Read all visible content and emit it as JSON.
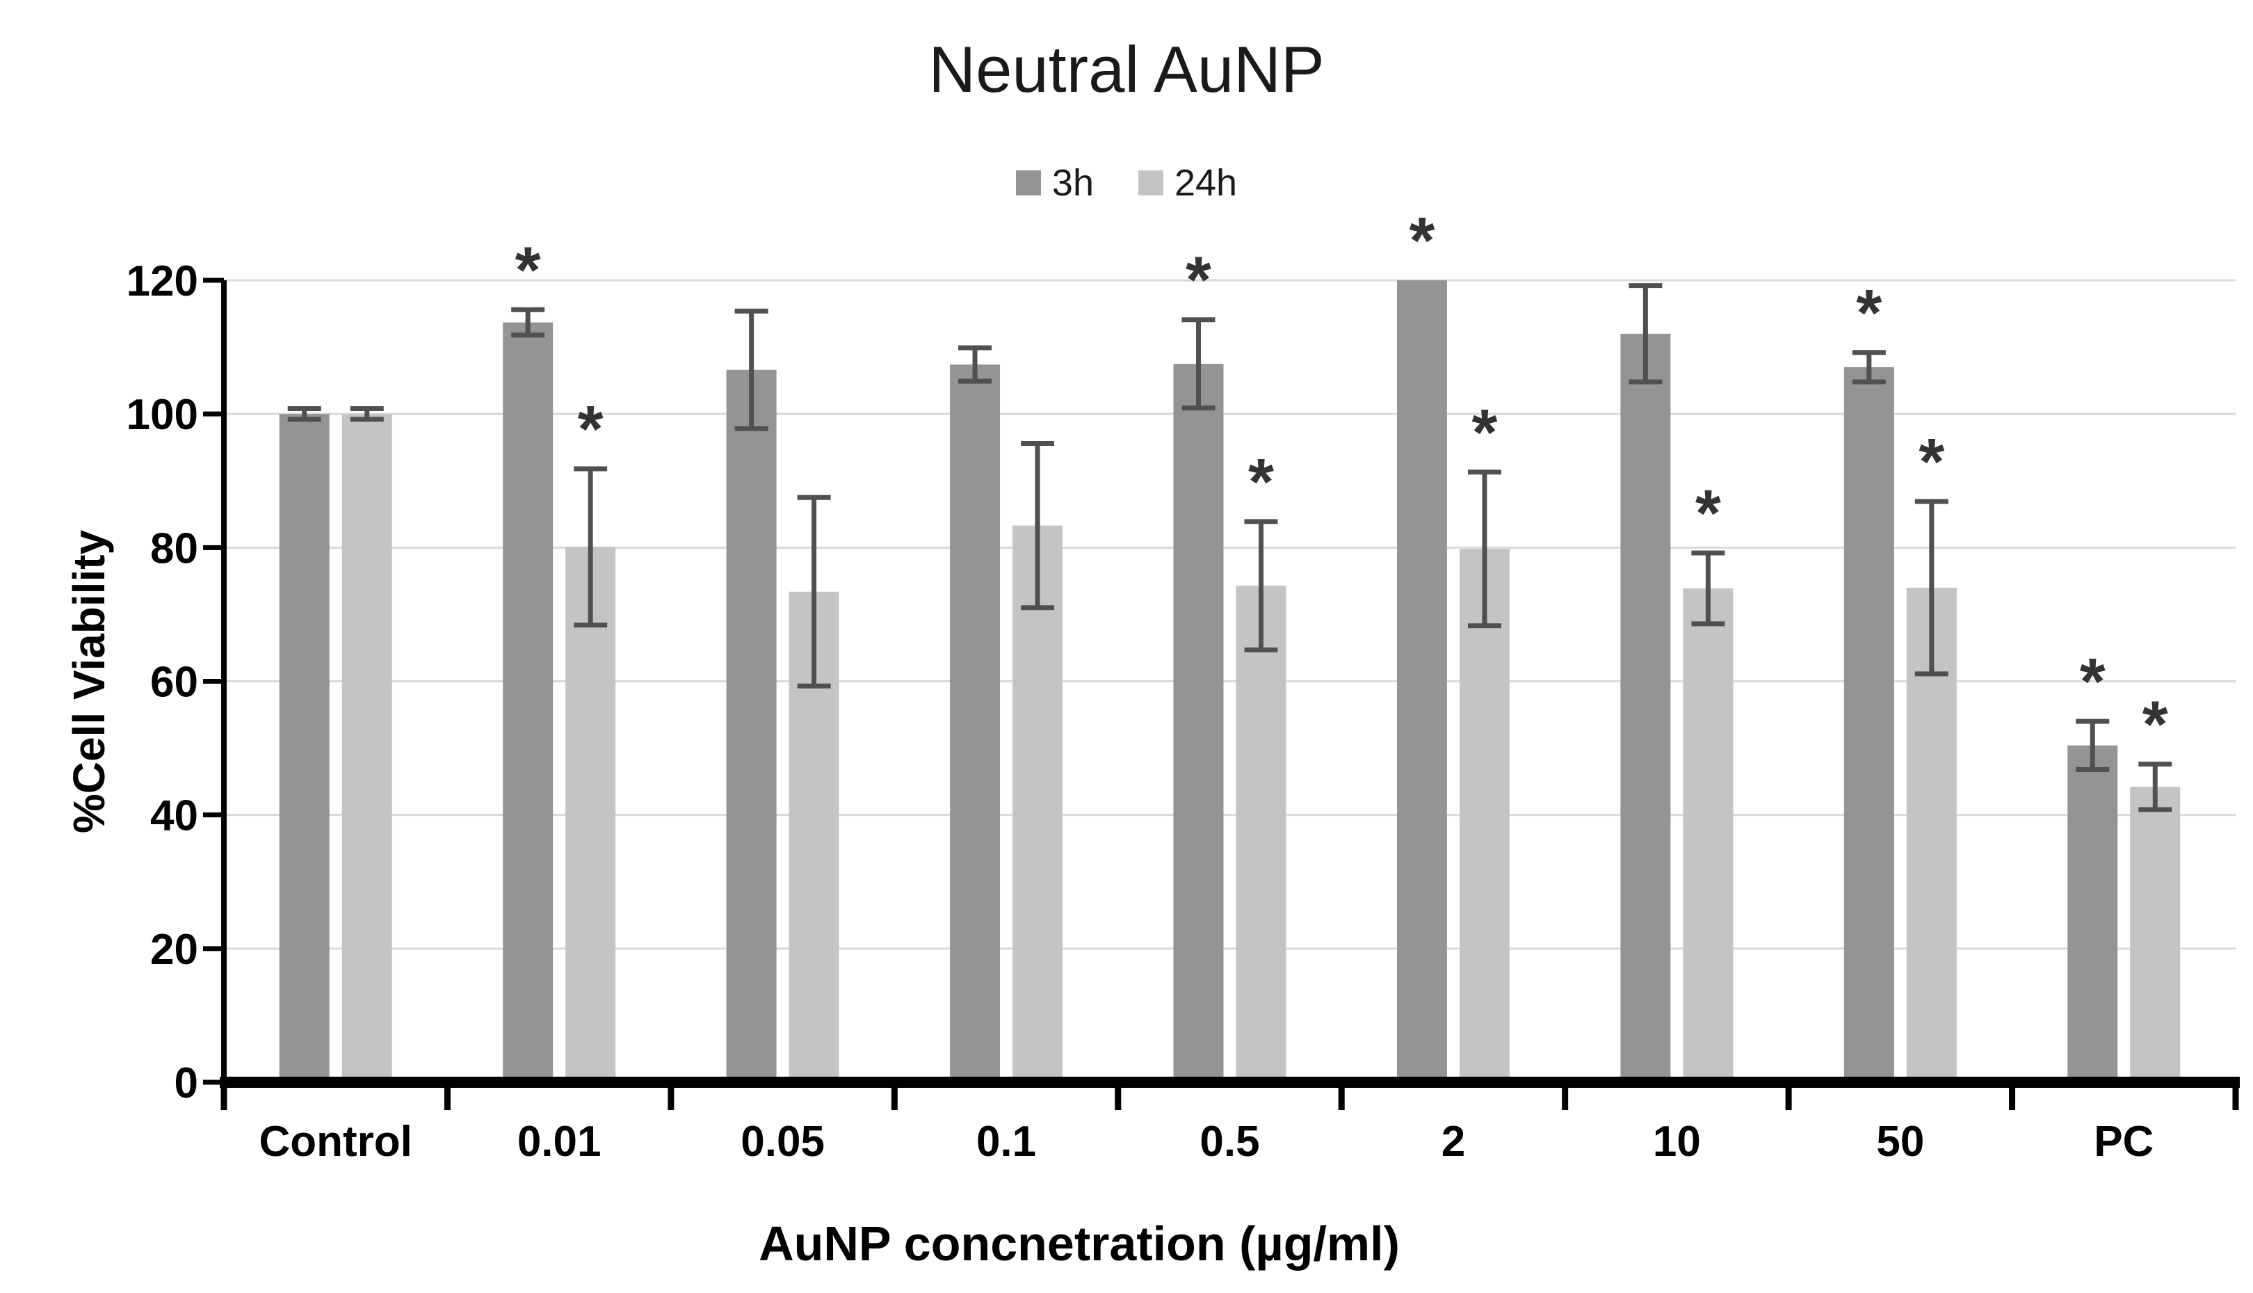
{
  "chart_data": {
    "type": "bar",
    "title": "Neutral AuNP",
    "xlabel": "AuNP concnetration (µg/ml)",
    "ylabel": "%Cell Viability",
    "ylim": [
      0,
      120
    ],
    "ytick_step": 20,
    "grid": true,
    "legend_position": "top-center",
    "categories": [
      "Control",
      "0.01",
      "0.05",
      "0.1",
      "0.5",
      "2",
      "10",
      "50",
      "PC"
    ],
    "series": [
      {
        "name": "3h",
        "color": "#949494",
        "values": [
          100,
          113.7,
          106.6,
          107.4,
          107.5,
          120,
          112,
          107,
          50.4
        ],
        "errors": [
          0.8,
          1.9,
          8.8,
          2.5,
          6.6,
          0,
          7.2,
          2.2,
          3.6
        ],
        "significant": [
          false,
          true,
          false,
          false,
          true,
          true,
          false,
          true,
          true
        ]
      },
      {
        "name": "24h",
        "color": "#c4c4c4",
        "values": [
          100,
          80.1,
          73.4,
          83.3,
          74.3,
          79.8,
          73.9,
          74,
          44.2
        ],
        "errors": [
          0.8,
          11.7,
          14.1,
          12.3,
          9.6,
          11.5,
          5.3,
          12.9,
          3.4
        ],
        "significant": [
          false,
          true,
          false,
          false,
          true,
          true,
          true,
          true,
          true
        ]
      }
    ],
    "significance_marker": "*",
    "error_bar_color": "#505050",
    "gridline_color": "#d9d9d9",
    "axis_color": "#000000",
    "marker_color": "#333333"
  }
}
